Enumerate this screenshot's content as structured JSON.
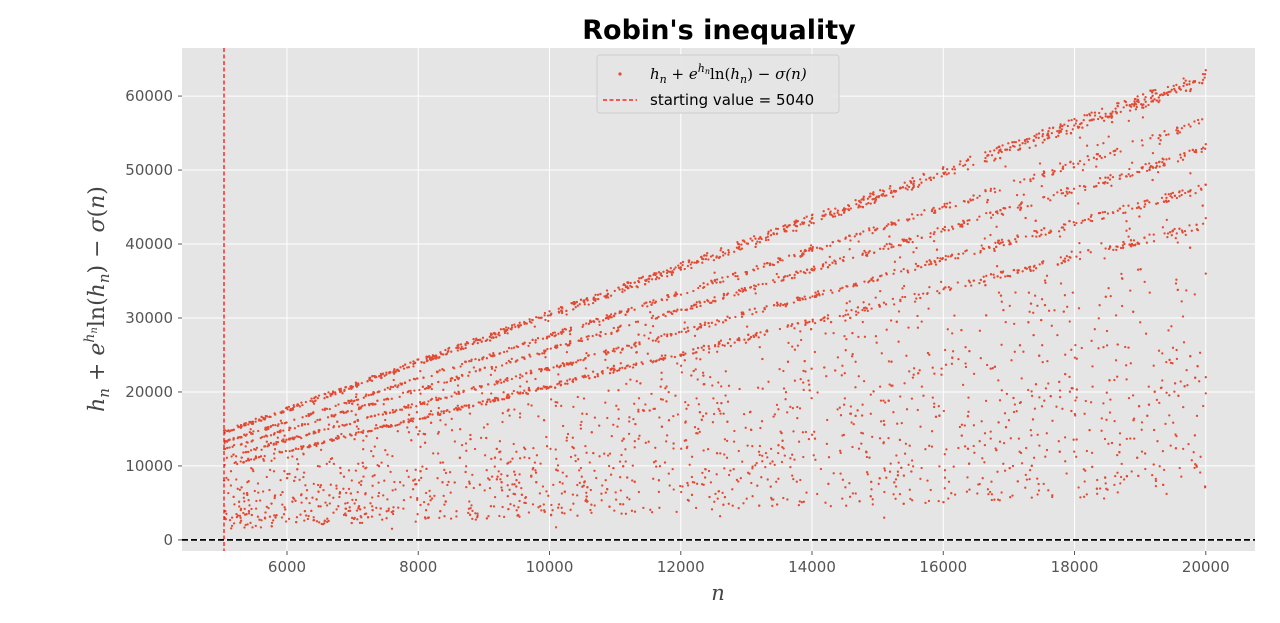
{
  "chart_data": {
    "type": "scatter",
    "title": "Robin's inequality",
    "xlabel": "n",
    "ylabel": "h_n + e^{h_n} ln(h_n) − σ(n)",
    "xlim": [
      4400,
      20750
    ],
    "ylim": [
      -1500,
      66500
    ],
    "x_ticks": [
      6000,
      8000,
      10000,
      12000,
      14000,
      16000,
      18000,
      20000
    ],
    "y_ticks": [
      0,
      10000,
      20000,
      30000,
      40000,
      50000,
      60000
    ],
    "x_tick_labels": [
      "6000",
      "8000",
      "10000",
      "12000",
      "14000",
      "16000",
      "18000",
      "20000"
    ],
    "y_tick_labels": [
      "0",
      "10000",
      "20000",
      "30000",
      "40000",
      "50000",
      "60000"
    ],
    "grid": true,
    "legend_position": "top-center",
    "series": [
      {
        "name": "h_n + e^{h_n} ln(h_n) − σ(n)",
        "kind": "scatter",
        "color": "#E24A33",
        "x_range": [
          5040,
          20000
        ],
        "upper_envelope": [
          [
            5040,
            14800
          ],
          [
            20000,
            63500
          ]
        ],
        "lower_bound_approx": [
          [
            5040,
            4500
          ],
          [
            20000,
            10000
          ]
        ],
        "sample_points": [
          [
            5040,
            14800
          ],
          [
            6000,
            17900
          ],
          [
            8000,
            24400
          ],
          [
            10000,
            30900
          ],
          [
            12000,
            37400
          ],
          [
            14000,
            43900
          ],
          [
            16000,
            50400
          ],
          [
            18000,
            56900
          ],
          [
            20000,
            63500
          ],
          [
            20000,
            53500
          ],
          [
            20000,
            48000
          ],
          [
            20000,
            43500
          ],
          [
            20000,
            36000
          ],
          [
            20000,
            22000
          ],
          [
            20000,
            19800
          ],
          [
            10100,
            1700
          ],
          [
            15100,
            3000
          ],
          [
            18450,
            5600
          ],
          [
            12600,
            3200
          ],
          [
            8400,
            3200
          ],
          [
            9500,
            4000
          ],
          [
            5300,
            2600
          ],
          [
            7600,
            1500
          ],
          [
            13800,
            4700
          ],
          [
            16400,
            6800
          ],
          [
            17600,
            6700
          ]
        ]
      },
      {
        "name": "starting value = 5040",
        "kind": "vline",
        "x": 5040,
        "color": "#FF0000",
        "style": "dashed"
      },
      {
        "name": "",
        "kind": "hline",
        "y": 0,
        "color": "#000000",
        "style": "dashed"
      }
    ]
  },
  "legend": {
    "scatter_label": {
      "h": "h",
      "h_sub": "n",
      "plus": " + ",
      "e": "e",
      "exp_h": "h",
      "exp_sub": "n",
      "ln": "ln(",
      "ln_h": "h",
      "ln_sub": "n",
      "close": ") − ",
      "sigma": "σ(n)"
    },
    "vline_label": "starting value = 5040"
  },
  "colors": {
    "plot_background": "#E5E5E5",
    "grid": "#FFFFFF",
    "points": "#E24A33",
    "vline": "#FF0000",
    "hline": "#000000"
  }
}
